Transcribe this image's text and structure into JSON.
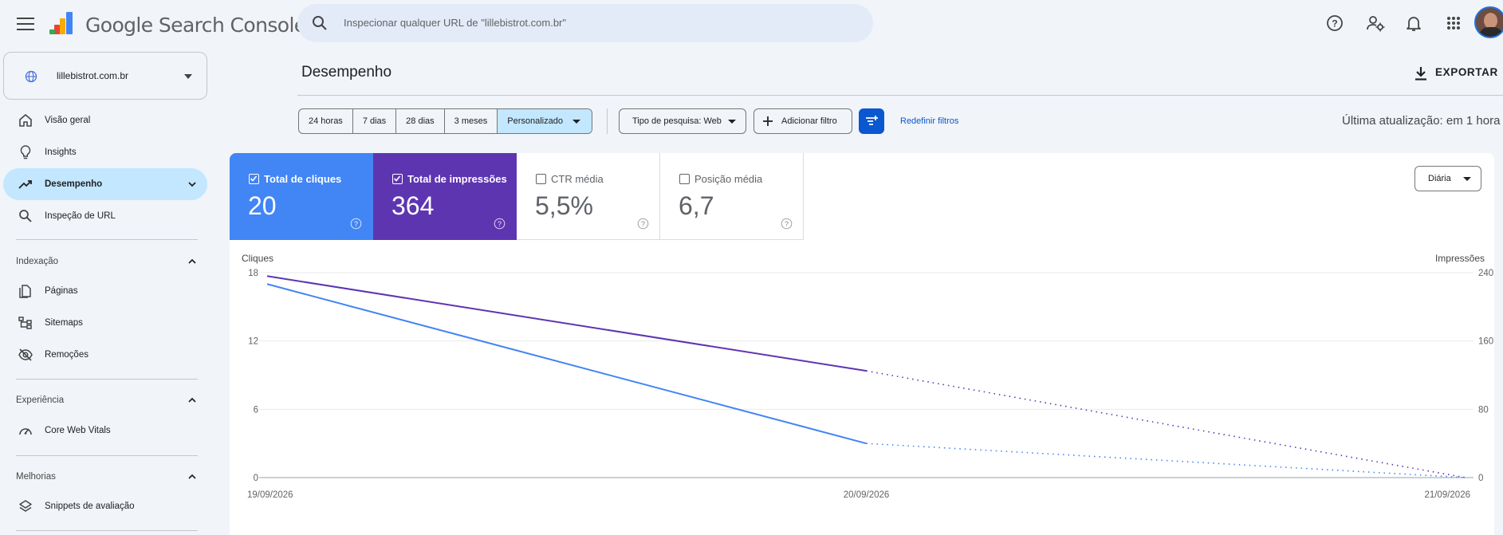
{
  "app": {
    "name": "Google Search Console"
  },
  "search": {
    "placeholder": "Inspecionar qualquer URL de \"lillebistrot.com.br\""
  },
  "property": {
    "name": "lillebistrot.com.br"
  },
  "nav": {
    "items": [
      {
        "label": "Visão geral",
        "icon": "home-icon"
      },
      {
        "label": "Insights",
        "icon": "lightbulb-icon"
      },
      {
        "label": "Desempenho",
        "icon": "trending-up-icon",
        "active": true
      },
      {
        "label": "Inspeção de URL",
        "icon": "search-icon"
      }
    ],
    "sections": [
      {
        "title": "Indexação",
        "items": [
          {
            "label": "Páginas",
            "icon": "pages-icon"
          },
          {
            "label": "Sitemaps",
            "icon": "sitemap-icon"
          },
          {
            "label": "Remoções",
            "icon": "visibility-off-icon"
          }
        ]
      },
      {
        "title": "Experiência",
        "items": [
          {
            "label": "Core Web Vitals",
            "icon": "speed-icon"
          }
        ]
      },
      {
        "title": "Melhorias",
        "items": [
          {
            "label": "Snippets de avaliação",
            "icon": "layers-icon"
          }
        ]
      }
    ]
  },
  "page": {
    "title": "Desempenho",
    "export_label": "EXPORTAR",
    "last_update": "Última atualização: em 1 hora"
  },
  "filters": {
    "ranges": [
      "24 horas",
      "7 dias",
      "28 dias",
      "3 meses",
      "Personalizado"
    ],
    "active_range": "Personalizado",
    "search_type": "Tipo de pesquisa: Web",
    "add_filter": "Adicionar filtro",
    "reset": "Redefinir filtros"
  },
  "metrics": [
    {
      "label": "Total de cliques",
      "value": "20",
      "checked": true,
      "color": "#4285f4"
    },
    {
      "label": "Total de impressões",
      "value": "364",
      "checked": true,
      "color": "#5e35b1"
    },
    {
      "label": "CTR média",
      "value": "5,5%",
      "checked": false
    },
    {
      "label": "Posição média",
      "value": "6,7",
      "checked": false
    }
  ],
  "granularity": "Diária",
  "chart_data": {
    "type": "line",
    "x": [
      "19/09/2026",
      "20/09/2026",
      "21/09/2026"
    ],
    "y_left": {
      "label": "Cliques",
      "ticks": [
        0,
        6,
        12,
        18
      ],
      "range": [
        0,
        18
      ]
    },
    "y_right": {
      "label": "Impressões",
      "ticks": [
        0,
        80,
        160,
        240
      ],
      "range": [
        0,
        240
      ]
    },
    "series": [
      {
        "name": "Total de cliques",
        "axis": "left",
        "color": "#4285f4",
        "values": [
          17,
          3,
          0
        ],
        "dotted_from_index": 1
      },
      {
        "name": "Total de impressões",
        "axis": "right",
        "color": "#5e35b1",
        "values": [
          236,
          125,
          0
        ],
        "dotted_from_index": 1
      }
    ],
    "grid": true
  }
}
